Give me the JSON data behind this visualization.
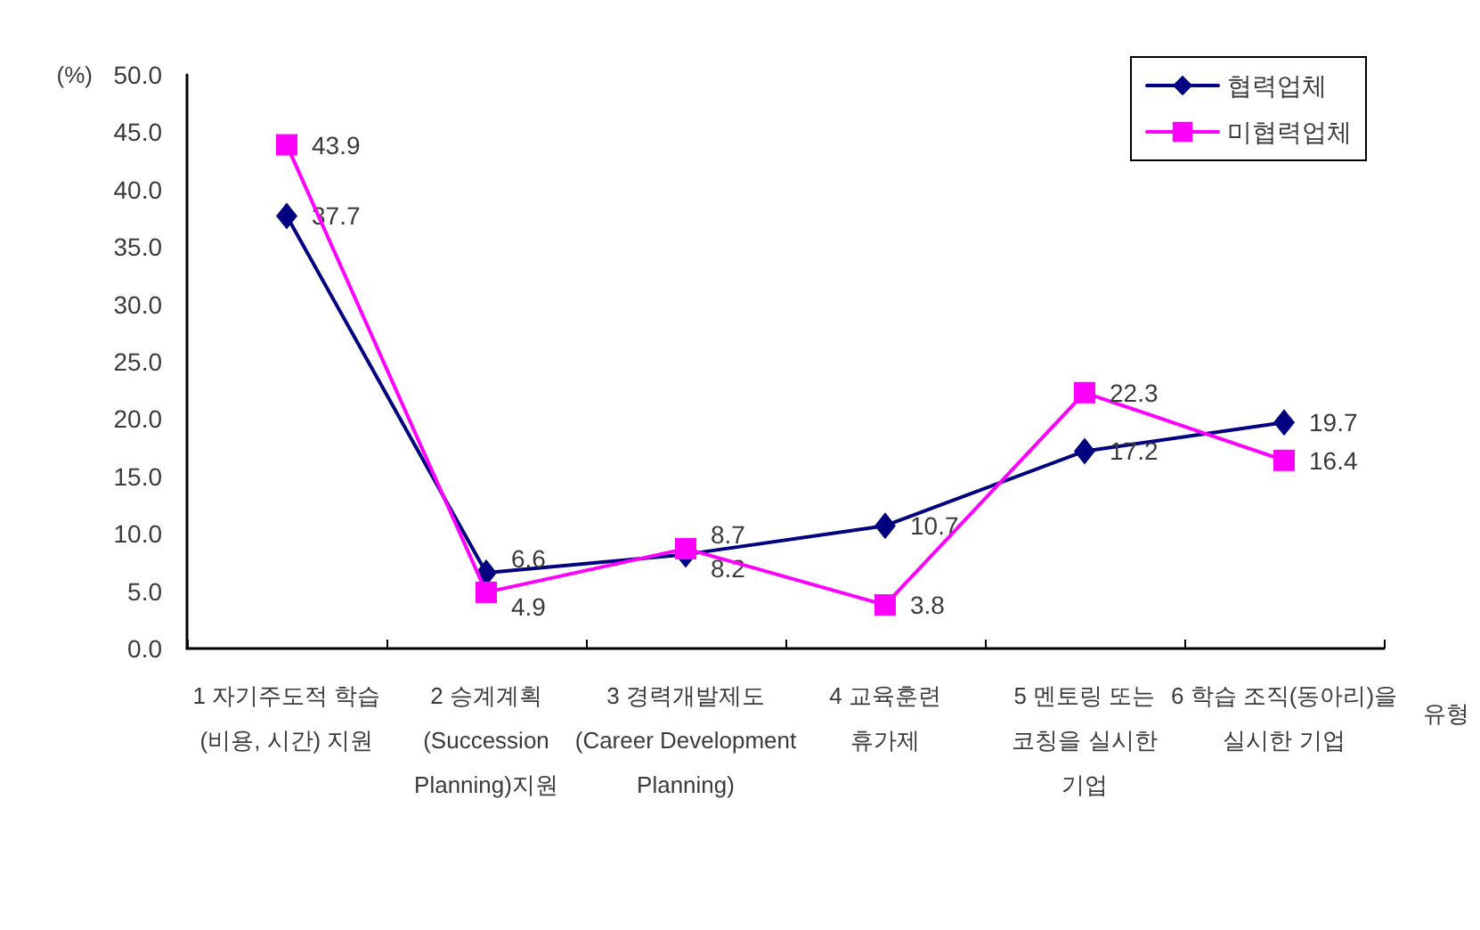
{
  "chart_data": {
    "type": "line",
    "xlabel": "유형",
    "ylabel": "(%)",
    "categories": [
      "1 자기주도적 학습\n(비용, 시간) 지원",
      "2 승계계획\n(Succession\nPlanning)지원",
      "3 경력개발제도\n(Career Development\nPlanning)",
      "4 교육훈련\n휴가제",
      "5 멘토링 또는\n코칭을 실시한\n기업",
      "6 학습 조직(동아리)을\n실시한 기업"
    ],
    "series": [
      {
        "name": "협력업체",
        "color": "#000080",
        "marker": "diamond",
        "values": [
          37.7,
          6.6,
          8.2,
          10.7,
          17.2,
          19.7
        ]
      },
      {
        "name": "미협력업체",
        "color": "#ff00ff",
        "marker": "square",
        "values": [
          43.9,
          4.9,
          8.7,
          3.8,
          22.3,
          16.4
        ]
      }
    ],
    "ylim": [
      0,
      50
    ],
    "yticks": [
      {
        "value": 0,
        "label": "0.0"
      },
      {
        "value": 5,
        "label": "5.0"
      },
      {
        "value": 10,
        "label": "10.0"
      },
      {
        "value": 15,
        "label": "15.0"
      },
      {
        "value": 20,
        "label": "20.0"
      },
      {
        "value": 25,
        "label": "25.0"
      },
      {
        "value": 30,
        "label": "30.0"
      },
      {
        "value": 35,
        "label": "35.0"
      },
      {
        "value": 40,
        "label": "40.0"
      },
      {
        "value": 45,
        "label": "45.0"
      },
      {
        "value": 50,
        "label": "50.0"
      }
    ],
    "grid": false,
    "legend": "top right",
    "data_labels": true,
    "line_style": "solid"
  }
}
